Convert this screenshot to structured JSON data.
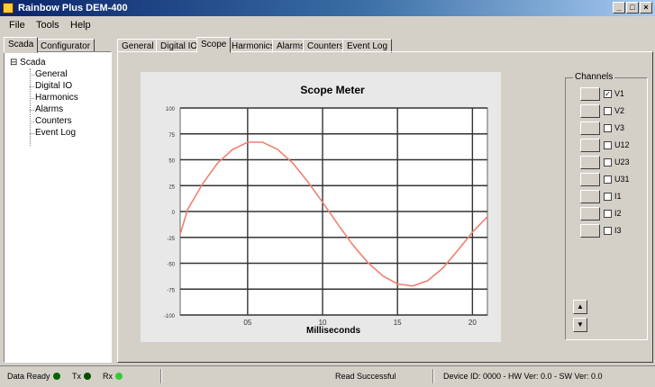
{
  "window": {
    "title": "Rainbow Plus DEM-400",
    "minimize": "_",
    "maximize": "□",
    "close": "×"
  },
  "menu": [
    "File",
    "Tools",
    "Help"
  ],
  "left_tabs": [
    "Scada",
    "Configurator"
  ],
  "tree": {
    "root": "Scada",
    "items": [
      "General",
      "Digital IO",
      "Harmonics",
      "Alarms",
      "Counters",
      "Event Log"
    ]
  },
  "main_tabs": [
    "General",
    "Digital IO",
    "Scope",
    "Harmonics",
    "Alarms",
    "Counters",
    "Event Log"
  ],
  "active_main_tab": "Scope",
  "chart_data": {
    "type": "line",
    "title": "Scope Meter",
    "xlabel": "Milliseconds",
    "ylabel": "",
    "xlim": [
      0.5,
      21
    ],
    "ylim": [
      -100,
      100
    ],
    "x_ticks": [
      "05",
      "10",
      "15",
      "20"
    ],
    "x_tick_values": [
      5,
      10,
      15,
      20
    ],
    "y_ticks": [
      "100",
      "75",
      "50",
      "25",
      "0",
      "-25",
      "-50",
      "-75",
      "-100"
    ],
    "y_tick_values": [
      100,
      75,
      50,
      25,
      0,
      -25,
      -50,
      -75,
      -100
    ],
    "grid": true,
    "legend": "top-right",
    "series": [
      {
        "name": "V1",
        "color": "#f08070",
        "x": [
          0.5,
          1,
          2,
          3,
          4,
          5,
          6,
          7,
          8,
          9,
          10,
          11,
          12,
          13,
          14,
          15,
          16,
          17,
          18,
          19,
          20,
          21
        ],
        "y": [
          -22,
          2,
          27,
          47,
          60,
          67,
          67,
          60,
          47,
          29,
          9,
          -12,
          -32,
          -49,
          -62,
          -70,
          -72,
          -67,
          -55,
          -38,
          -20,
          -5
        ]
      }
    ]
  },
  "channels": {
    "title": "Channels",
    "items": [
      {
        "label": "V1",
        "checked": true
      },
      {
        "label": "V2",
        "checked": false
      },
      {
        "label": "V3",
        "checked": false
      },
      {
        "label": "U12",
        "checked": false
      },
      {
        "label": "U23",
        "checked": false
      },
      {
        "label": "U31",
        "checked": false
      },
      {
        "label": "I1",
        "checked": false
      },
      {
        "label": "I2",
        "checked": false
      },
      {
        "label": "I3",
        "checked": false
      }
    ],
    "up_icon": "▲",
    "down_icon": "▼"
  },
  "status": {
    "data_ready": "Data Ready",
    "tx": "Tx",
    "rx": "Rx",
    "message": "Read Successful",
    "device": "Device ID: 0000 - HW Ver: 0.0 - SW Ver: 0.0",
    "colors": {
      "data_ready": "#006600",
      "tx": "#004d00",
      "rx": "#33cc33"
    }
  }
}
